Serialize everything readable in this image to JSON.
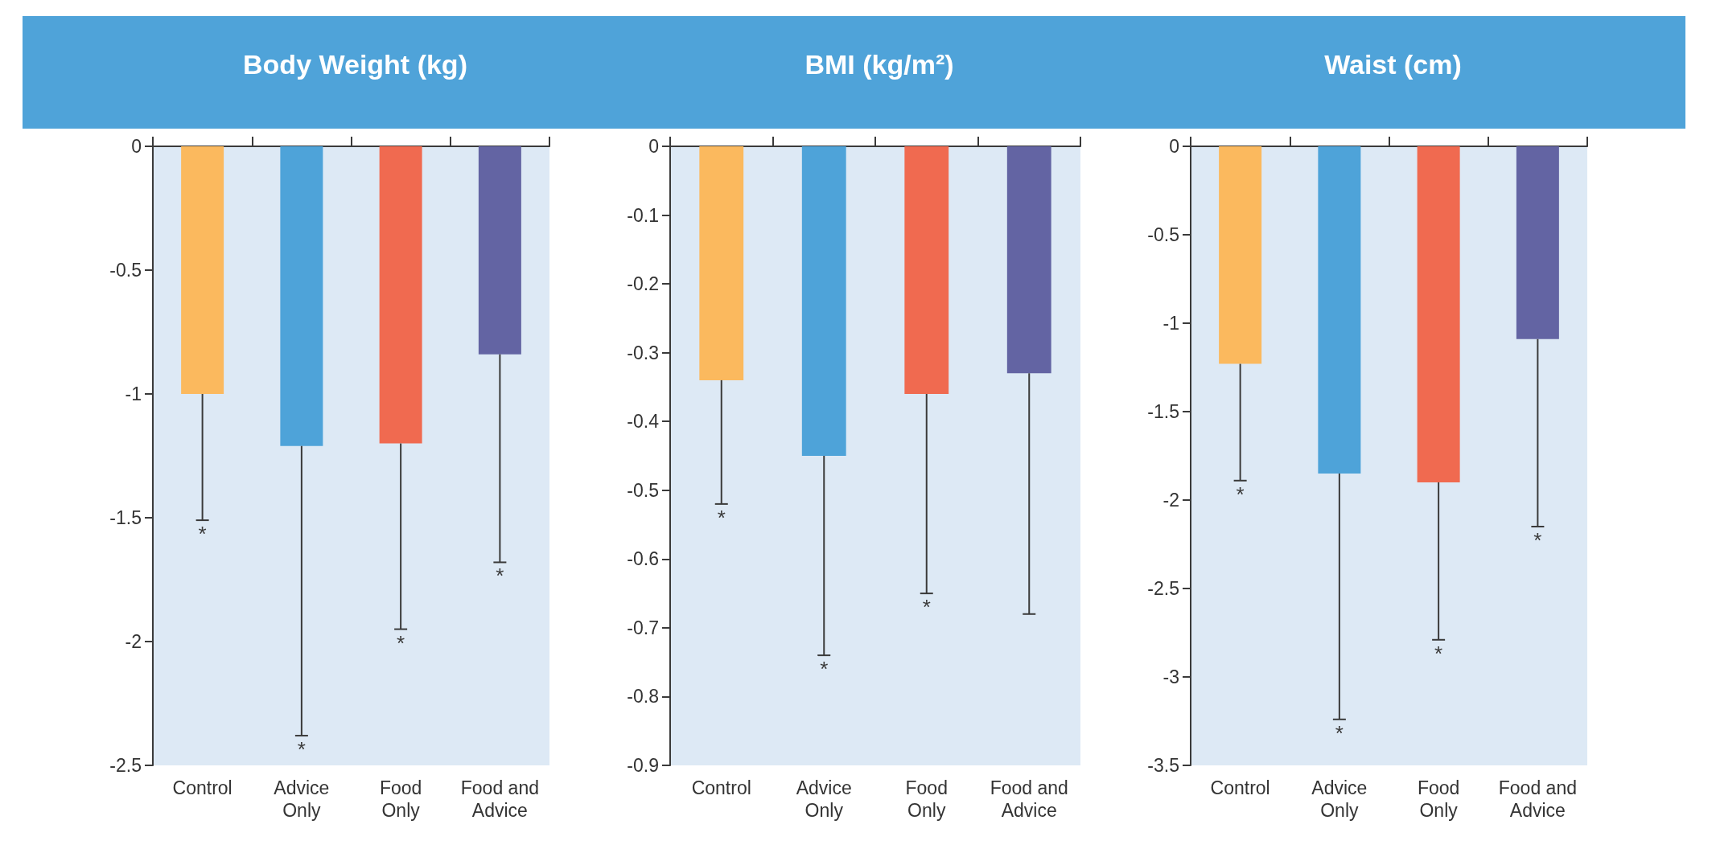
{
  "chart_data": [
    {
      "type": "bar",
      "title": "Body Weight (kg)",
      "categories": [
        "Control",
        "Advice Only",
        "Food Only",
        "Food and Advice"
      ],
      "values": [
        -1.0,
        -1.21,
        -1.2,
        -0.84
      ],
      "colors": [
        "#fbb95e",
        "#4ea3d9",
        "#f06a50",
        "#6364a3"
      ],
      "errors": [
        [
          -1.51,
          -1.0
        ],
        [
          -2.38,
          -1.21
        ],
        [
          -1.95,
          -1.2
        ],
        [
          -1.68,
          -0.84
        ]
      ],
      "ylim": [
        -2.5,
        0
      ],
      "yticks": [
        0,
        -0.5,
        -1,
        -1.5,
        -2,
        -2.5
      ],
      "grid": false,
      "annotations": [
        {
          "text": "*",
          "x": "Control",
          "y": -1.51
        },
        {
          "text": "*",
          "x": "Advice Only",
          "y": -2.38
        },
        {
          "text": "*",
          "x": "Food Only",
          "y": -1.95
        },
        {
          "text": "*",
          "x": "Food and Advice",
          "y": -1.68
        }
      ]
    },
    {
      "type": "bar",
      "title": "BMI (kg/m²)",
      "categories": [
        "Control",
        "Advice Only",
        "Food Only",
        "Food and Advice"
      ],
      "values": [
        -0.34,
        -0.45,
        -0.36,
        -0.33
      ],
      "colors": [
        "#fbb95e",
        "#4ea3d9",
        "#f06a50",
        "#6364a3"
      ],
      "errors": [
        [
          -0.52,
          -0.34
        ],
        [
          -0.74,
          -0.45
        ],
        [
          -0.65,
          -0.36
        ],
        [
          -0.68,
          -0.33
        ]
      ],
      "ylim": [
        -0.9,
        0
      ],
      "yticks": [
        0,
        -0.1,
        -0.2,
        -0.3,
        -0.4,
        -0.5,
        -0.6,
        -0.7,
        -0.8,
        -0.9
      ],
      "grid": false,
      "annotations": [
        {
          "text": "*",
          "x": "Control",
          "y": -0.52
        },
        {
          "text": "*",
          "x": "Advice Only",
          "y": -0.74
        },
        {
          "text": "*",
          "x": "Food Only",
          "y": -0.65
        }
      ]
    },
    {
      "type": "bar",
      "title": "Waist (cm)",
      "categories": [
        "Control",
        "Advice Only",
        "Food Only",
        "Food and Advice"
      ],
      "values": [
        -1.23,
        -1.85,
        -1.9,
        -1.09
      ],
      "colors": [
        "#fbb95e",
        "#4ea3d9",
        "#f06a50",
        "#6364a3"
      ],
      "errors": [
        [
          -1.89,
          -1.23
        ],
        [
          -3.24,
          -1.85
        ],
        [
          -2.79,
          -1.9
        ],
        [
          -2.15,
          -1.09
        ]
      ],
      "ylim": [
        -3.5,
        0
      ],
      "yticks": [
        0,
        -0.5,
        -1,
        -1.5,
        -2,
        -2.5,
        -3,
        -3.5
      ],
      "grid": false,
      "annotations": [
        {
          "text": "*",
          "x": "Control",
          "y": -1.89
        },
        {
          "text": "*",
          "x": "Advice Only",
          "y": -3.24
        },
        {
          "text": "*",
          "x": "Food Only",
          "y": -2.79
        },
        {
          "text": "*",
          "x": "Food and Advice",
          "y": -2.15
        }
      ]
    }
  ]
}
